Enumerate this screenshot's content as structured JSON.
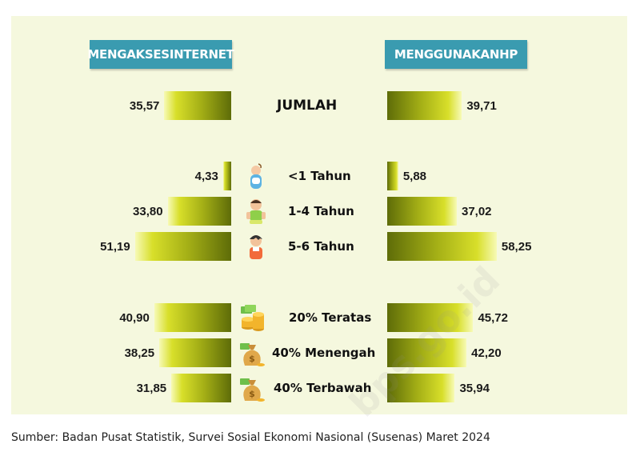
{
  "chart_data": {
    "type": "bar",
    "series": [
      {
        "name": "MENGAKSESINTERNET",
        "values": [
          35.57,
          4.33,
          33.8,
          51.19,
          40.9,
          38.25,
          31.85
        ],
        "labels": [
          "35,57",
          "4,33",
          "33,80",
          "51,19",
          "40,90",
          "38,25",
          "31,85"
        ]
      },
      {
        "name": "MENGGUNAKANHP",
        "values": [
          39.71,
          5.88,
          37.02,
          58.25,
          45.72,
          42.2,
          35.94
        ],
        "labels": [
          "39,71",
          "5,88",
          "37,02",
          "58,25",
          "45,72",
          "42,20",
          "35,94"
        ]
      }
    ],
    "categories": [
      "JUMLAH",
      "<1 Tahun",
      "1-4 Tahun",
      "5-6 Tahun",
      "20% Teratas",
      "40% Menengah",
      "40% Terbawah"
    ],
    "icons": [
      "",
      "baby-icon",
      "toddler-icon",
      "child-icon",
      "coins-icon",
      "money-bag-icon",
      "money-bag-icon"
    ],
    "colors": {
      "bar_dark": "#5e6c08",
      "bar_mid": "#a4af16",
      "bar_light": "#f7fab6",
      "header": "#3a9bb0",
      "panel": "#f5f8de"
    }
  },
  "watermark": "bps.go.id",
  "source_note": "Sumber: Badan Pusat Statistik, Survei Sosial Ekonomi Nasional (Susenas) Maret 2024"
}
